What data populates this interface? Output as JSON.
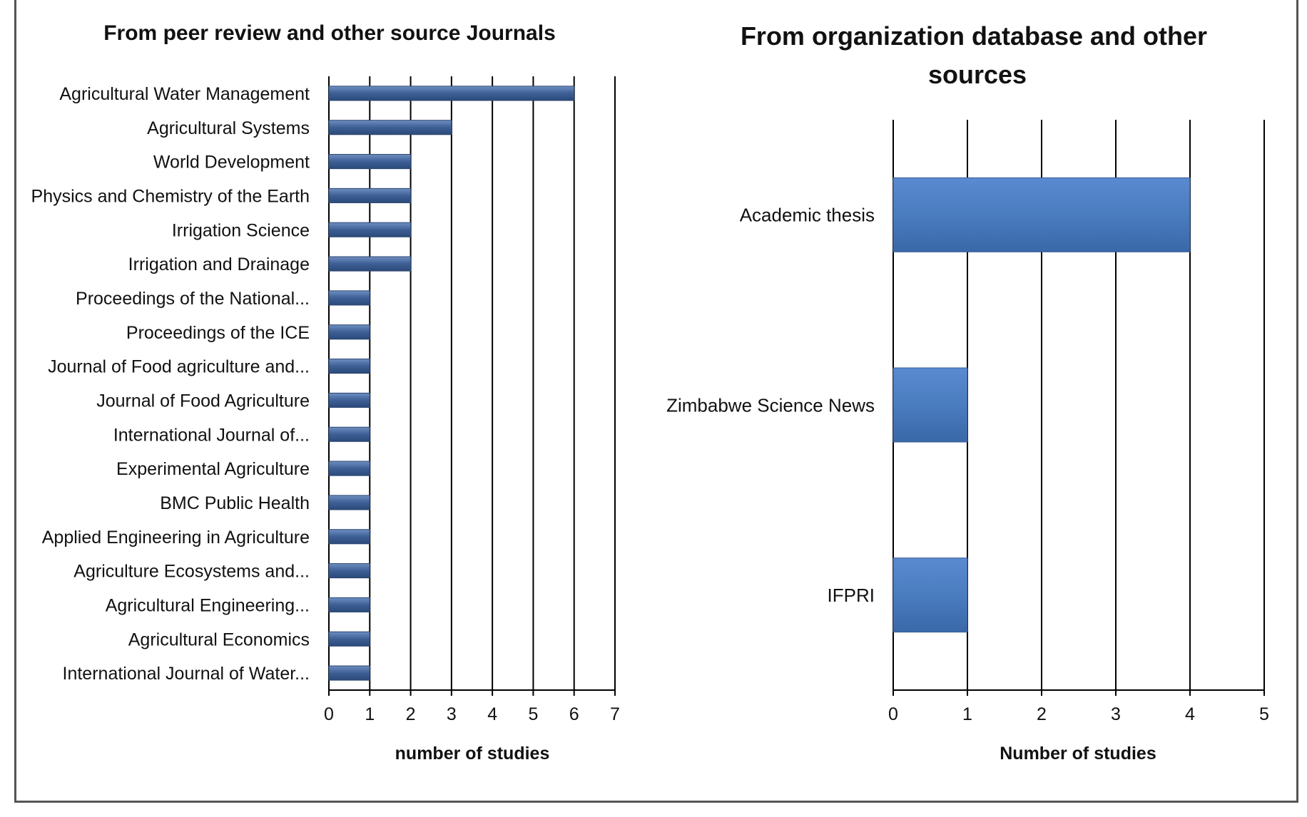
{
  "chart_data": [
    {
      "type": "bar",
      "orientation": "horizontal",
      "title": "From peer review and other source Journals",
      "categories": [
        "Agricultural Water Management",
        "Agricultural Systems",
        "World Development",
        "Physics and Chemistry of the Earth",
        "Irrigation Science",
        "Irrigation and Drainage",
        "Proceedings of the National...",
        "Proceedings of the ICE",
        "Journal of Food agriculture and...",
        "Journal of Food Agriculture",
        "International Journal of...",
        "Experimental Agriculture",
        "BMC Public Health",
        "Applied Engineering in Agriculture",
        "Agriculture Ecosystems and...",
        "Agricultural Engineering...",
        "Agricultural Economics",
        "International Journal of Water..."
      ],
      "values": [
        6,
        3,
        2,
        2,
        2,
        2,
        1,
        1,
        1,
        1,
        1,
        1,
        1,
        1,
        1,
        1,
        1,
        1
      ],
      "xlabel": "number of studies",
      "ylabel": "",
      "xlim": [
        0,
        7
      ],
      "ticks": [
        "0",
        "1",
        "2",
        "3",
        "4",
        "5",
        "6",
        "7"
      ],
      "grid": true,
      "bar_color": "#3d5f95"
    },
    {
      "type": "bar",
      "orientation": "horizontal",
      "title": "From organization database and other sources",
      "categories": [
        "Academic thesis",
        "Zimbabwe Science News",
        "IFPRI"
      ],
      "values": [
        4,
        1,
        1
      ],
      "xlabel": "Number of studies",
      "ylabel": "",
      "xlim": [
        0,
        5
      ],
      "ticks": [
        "0",
        "1",
        "2",
        "3",
        "4",
        "5"
      ],
      "grid": true,
      "bar_color": "#4a7cc0"
    }
  ]
}
